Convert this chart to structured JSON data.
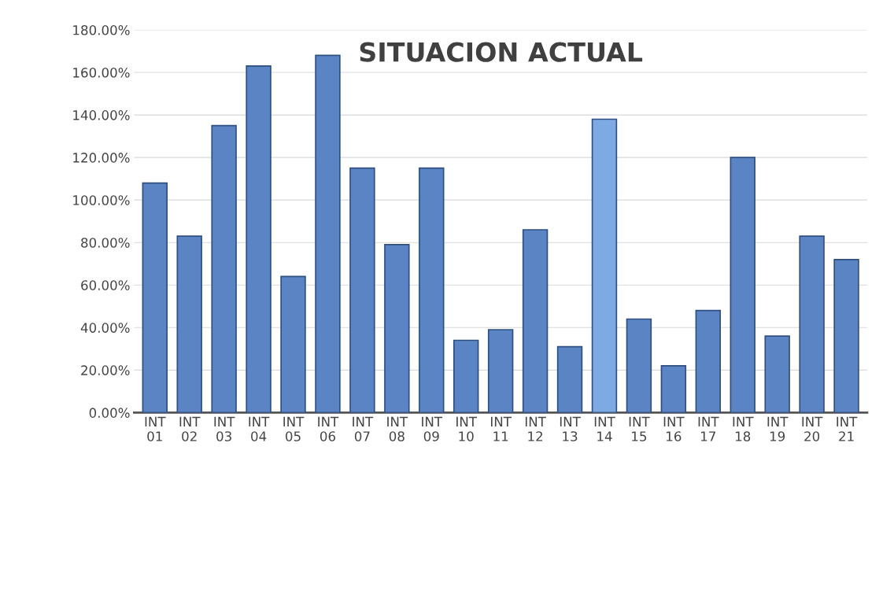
{
  "chart_data": {
    "type": "bar",
    "title": "SITUACION ACTUAL",
    "categories": [
      "INT\n01",
      "INT\n02",
      "INT\n03",
      "INT\n04",
      "INT\n05",
      "INT\n06",
      "INT\n07",
      "INT\n08",
      "INT\n09",
      "INT\n10",
      "INT\n11",
      "INT\n12",
      "INT\n13",
      "INT\n14",
      "INT\n15",
      "INT\n16",
      "INT\n17",
      "INT\n18",
      "INT\n19",
      "INT\n20",
      "INT\n21"
    ],
    "values": [
      108,
      83,
      135,
      163,
      64,
      168,
      115,
      79,
      115,
      34,
      39,
      86,
      31,
      138,
      44,
      22,
      48,
      120,
      36,
      83,
      72
    ],
    "colors": [
      "#5b84c4",
      "#5b84c4",
      "#5b84c4",
      "#5b84c4",
      "#5b84c4",
      "#5b84c4",
      "#5b84c4",
      "#5b84c4",
      "#5b84c4",
      "#5b84c4",
      "#5b84c4",
      "#5b84c4",
      "#5b84c4",
      "#7eaae4",
      "#5b84c4",
      "#5b84c4",
      "#5b84c4",
      "#5b84c4",
      "#5b84c4",
      "#5b84c4",
      "#5b84c4"
    ],
    "ylim": [
      0,
      180
    ],
    "yticks": [
      {
        "value": 0,
        "label": "0.00%"
      },
      {
        "value": 20,
        "label": "20.00%"
      },
      {
        "value": 40,
        "label": "40.00%"
      },
      {
        "value": 60,
        "label": "60.00%"
      },
      {
        "value": 80,
        "label": "80.00%"
      },
      {
        "value": 100,
        "label": "100.00%"
      },
      {
        "value": 120,
        "label": "120.00%"
      },
      {
        "value": 140,
        "label": "140.00%"
      },
      {
        "value": 160,
        "label": "160.00%"
      },
      {
        "value": 180,
        "label": "180.00%"
      }
    ],
    "grid": "y"
  }
}
